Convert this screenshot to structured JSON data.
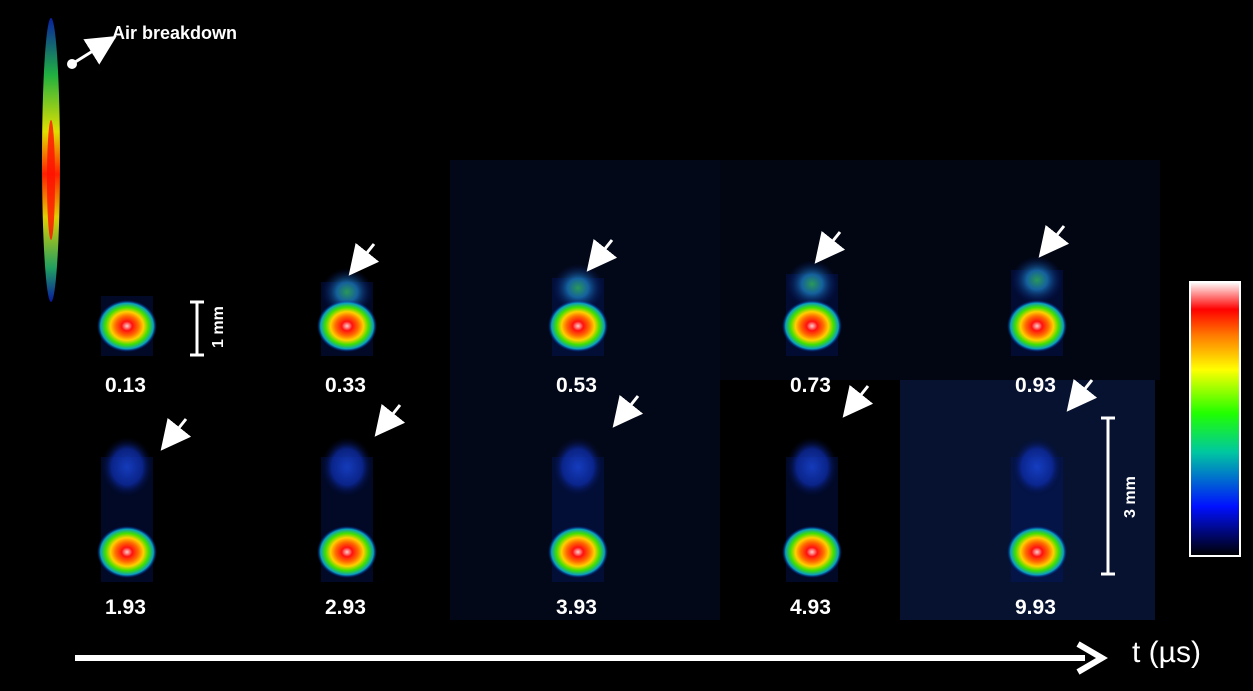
{
  "annotation": {
    "text": "Air breakdown"
  },
  "time_axis": {
    "label": "t (µs)"
  },
  "scale_bars": {
    "small": "1 mm",
    "large": "3 mm"
  },
  "frames": [
    {
      "time": "0.13",
      "row": 0,
      "has_arrow": false
    },
    {
      "time": "0.33",
      "row": 0,
      "has_arrow": true
    },
    {
      "time": "0.53",
      "row": 0,
      "has_arrow": true
    },
    {
      "time": "0.73",
      "row": 0,
      "has_arrow": true
    },
    {
      "time": "0.93",
      "row": 0,
      "has_arrow": true
    },
    {
      "time": "1.93",
      "row": 1,
      "has_arrow": true
    },
    {
      "time": "2.93",
      "row": 1,
      "has_arrow": true
    },
    {
      "time": "3.93",
      "row": 1,
      "has_arrow": true
    },
    {
      "time": "4.93",
      "row": 1,
      "has_arrow": true
    },
    {
      "time": "9.93",
      "row": 1,
      "has_arrow": true
    }
  ],
  "colors": {
    "background": "#000000",
    "colorbar_stops": [
      "#000000",
      "#0000ff",
      "#00ff00",
      "#ffff00",
      "#ff0000",
      "#ffffff"
    ]
  }
}
